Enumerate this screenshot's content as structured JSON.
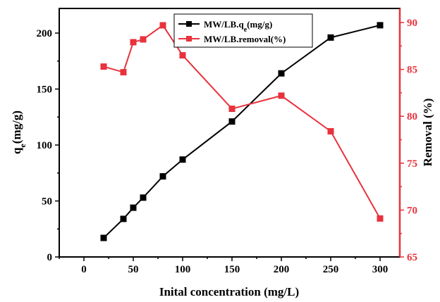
{
  "chart_data": {
    "type": "line",
    "xlabel": "Inital concentration (mg/L)",
    "ylabel_left_main": "q",
    "ylabel_left_sub": "e",
    "ylabel_left_unit": "(mg/g)",
    "ylabel_right": "Removal (%)",
    "xlim": [
      -25,
      320
    ],
    "ylim_left": [
      0,
      222
    ],
    "ylim_right": [
      65,
      91.5
    ],
    "x_ticks": [
      0,
      50,
      100,
      150,
      200,
      250,
      300
    ],
    "y_left_ticks": [
      0,
      50,
      100,
      150,
      200
    ],
    "y_right_ticks": [
      65,
      70,
      75,
      80,
      85,
      90
    ],
    "colors": {
      "qe": "#000000",
      "removal": "#e8323c",
      "right_axis": "#e8323c"
    },
    "series": [
      {
        "name": "MW/LB.qe(mg/g)",
        "legend_main": "MW/LB.q",
        "legend_sub": "e",
        "legend_unit": "(mg/g)",
        "axis": "left",
        "x": [
          20,
          40,
          50,
          60,
          80,
          100,
          150,
          200,
          250,
          300
        ],
        "values": [
          17,
          34,
          44,
          53,
          72,
          87,
          121,
          164,
          196,
          207
        ]
      },
      {
        "name": "MW/LB.removal(%)",
        "axis": "right",
        "x": [
          20,
          40,
          50,
          60,
          80,
          100,
          150,
          200,
          250,
          300
        ],
        "values": [
          85.3,
          84.7,
          87.9,
          88.2,
          89.7,
          86.5,
          80.8,
          82.2,
          78.4,
          69.1
        ]
      }
    ]
  }
}
